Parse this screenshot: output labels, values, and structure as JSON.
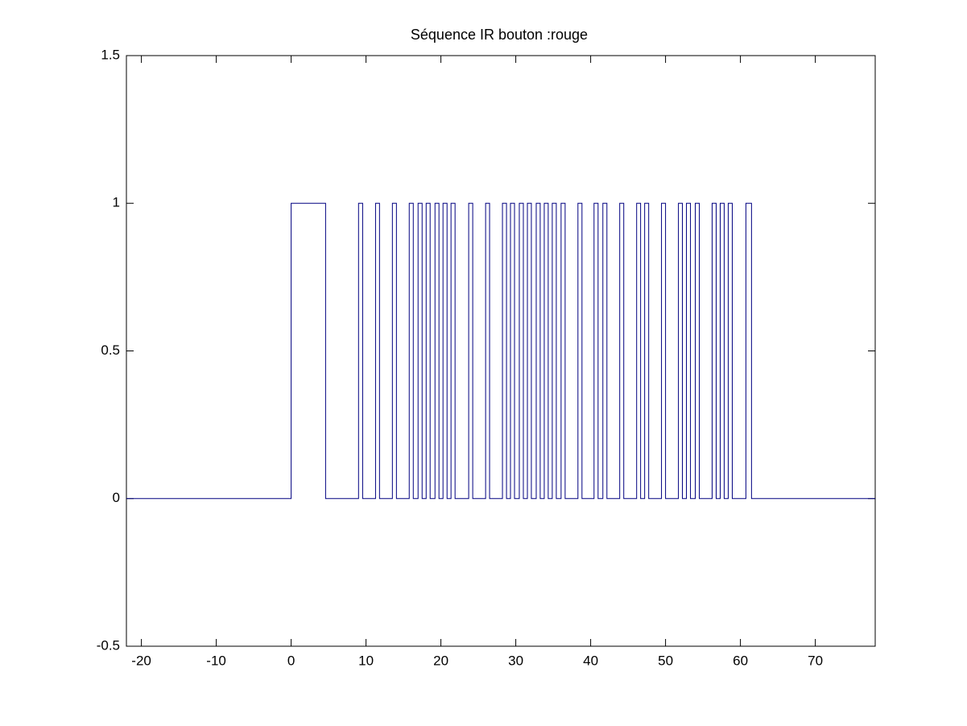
{
  "chart_data": {
    "type": "line",
    "title": "Séquence IR bouton :rouge",
    "x": [
      -22,
      0,
      0,
      4.6,
      4.6,
      9.0,
      9.0,
      9.55,
      9.55,
      11.27,
      11.27,
      11.8,
      11.8,
      13.52,
      13.52,
      14.06,
      14.06,
      15.77,
      15.77,
      16.31,
      16.31,
      16.95,
      16.95,
      17.49,
      17.49,
      18.03,
      18.03,
      18.56,
      18.56,
      19.21,
      19.21,
      19.74,
      19.74,
      20.28,
      20.28,
      20.82,
      20.82,
      21.35,
      21.35,
      21.89,
      21.89,
      23.71,
      23.71,
      24.25,
      24.25,
      25.97,
      25.97,
      26.5,
      26.5,
      28.22,
      28.22,
      28.76,
      28.76,
      29.29,
      29.29,
      29.83,
      29.83,
      30.47,
      30.47,
      31.01,
      31.01,
      31.55,
      31.55,
      32.08,
      32.08,
      32.73,
      32.73,
      33.26,
      33.26,
      33.8,
      33.8,
      34.33,
      34.33,
      34.87,
      34.87,
      35.41,
      35.41,
      36.05,
      36.05,
      36.59,
      36.59,
      38.3,
      38.3,
      38.84,
      38.84,
      40.45,
      40.45,
      40.99,
      40.99,
      41.63,
      41.63,
      42.17,
      42.17,
      43.88,
      43.88,
      44.42,
      44.42,
      46.14,
      46.14,
      46.67,
      46.67,
      47.21,
      47.21,
      47.75,
      47.75,
      49.46,
      49.46,
      50.0,
      50.0,
      51.72,
      51.72,
      52.25,
      52.25,
      52.79,
      52.79,
      53.33,
      53.33,
      53.97,
      53.97,
      54.51,
      54.51,
      56.22,
      56.22,
      56.76,
      56.76,
      57.3,
      57.3,
      57.83,
      57.83,
      58.37,
      58.37,
      58.91,
      58.91,
      60.73,
      60.73,
      61.48,
      61.48,
      78
    ],
    "values": [
      0,
      0,
      1,
      1,
      0,
      0,
      1,
      1,
      0,
      0,
      1,
      1,
      0,
      0,
      1,
      1,
      0,
      0,
      1,
      1,
      0,
      0,
      1,
      1,
      0,
      0,
      1,
      1,
      0,
      0,
      1,
      1,
      0,
      0,
      1,
      1,
      0,
      0,
      1,
      1,
      0,
      0,
      1,
      1,
      0,
      0,
      1,
      1,
      0,
      0,
      1,
      1,
      0,
      0,
      1,
      1,
      0,
      0,
      1,
      1,
      0,
      0,
      1,
      1,
      0,
      0,
      1,
      1,
      0,
      0,
      1,
      1,
      0,
      0,
      1,
      1,
      0,
      0,
      1,
      1,
      0,
      0,
      1,
      1,
      0,
      0,
      1,
      1,
      0,
      0,
      1,
      1,
      0,
      0,
      1,
      1,
      0,
      0,
      1,
      1,
      0,
      0,
      1,
      1,
      0,
      0,
      1,
      1,
      0,
      0,
      1,
      1,
      0,
      0,
      1,
      1,
      0,
      0,
      1,
      1,
      0,
      0,
      1,
      1,
      0,
      0,
      1,
      1,
      0,
      0,
      1,
      1,
      0,
      0,
      1,
      1,
      0,
      0
    ],
    "color": "#000080",
    "xlim": [
      -22,
      78
    ],
    "xticks": [
      -20,
      -10,
      0,
      10,
      20,
      30,
      40,
      50,
      60,
      70
    ],
    "ylim": [
      -0.5,
      1.5
    ],
    "yticks": [
      -0.5,
      0,
      0.5,
      1,
      1.5
    ]
  }
}
